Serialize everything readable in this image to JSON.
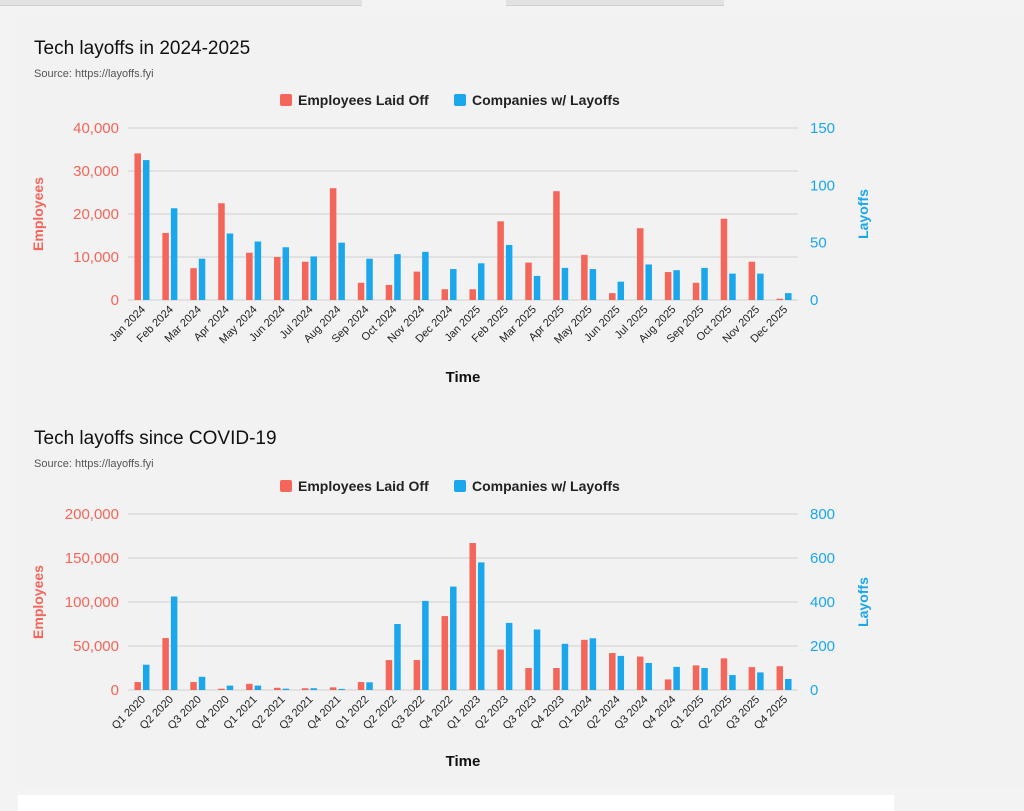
{
  "colors": {
    "employees": "#f4655a",
    "companies": "#1aa7ec",
    "grid": "#d0d0d0",
    "axis_left": "#f4655a",
    "axis_right": "#1aa7ec"
  },
  "chart_data": [
    {
      "type": "bar",
      "title": "Tech layoffs in 2024-2025",
      "subtitle": "Source: https://layoffs.fyi",
      "xlabel": "Time",
      "ylabel_left": "Employees",
      "ylabel_right": "Layoffs",
      "legend_position": "top-center",
      "grid": true,
      "ylim_left": [
        0,
        40000
      ],
      "ylim_right": [
        0,
        150
      ],
      "yticks_left": [
        "0",
        "10,000",
        "20,000",
        "30,000",
        "40,000"
      ],
      "yticks_right": [
        "0",
        "50",
        "100",
        "150"
      ],
      "categories": [
        "Jan 2024",
        "Feb 2024",
        "Mar 2024",
        "Apr 2024",
        "May 2024",
        "Jun 2024",
        "Jul 2024",
        "Aug 2024",
        "Sep 2024",
        "Oct 2024",
        "Nov 2024",
        "Dec 2024",
        "Jan 2025",
        "Feb 2025",
        "Mar 2025",
        "Apr 2025",
        "May 2025",
        "Jun 2025",
        "Jul 2025",
        "Aug 2025",
        "Sep 2025",
        "Oct 2025",
        "Nov 2025",
        "Dec 2025"
      ],
      "series": [
        {
          "name": "Employees Laid Off",
          "axis": "left",
          "values": [
            34100,
            15600,
            7400,
            22500,
            11000,
            10000,
            8900,
            26000,
            4000,
            3500,
            6600,
            2500,
            2500,
            18300,
            8700,
            25300,
            10500,
            1600,
            16700,
            6500,
            4000,
            18900,
            8900,
            300
          ]
        },
        {
          "name": "Companies w/ Layoffs",
          "axis": "right",
          "values": [
            122,
            80,
            36,
            58,
            51,
            46,
            38,
            50,
            36,
            40,
            42,
            27,
            32,
            48,
            21,
            28,
            27,
            16,
            31,
            26,
            28,
            23,
            23,
            6
          ]
        }
      ]
    },
    {
      "type": "bar",
      "title": "Tech layoffs since COVID-19",
      "subtitle": "Source: https://layoffs.fyi",
      "xlabel": "Time",
      "ylabel_left": "Employees",
      "ylabel_right": "Layoffs",
      "legend_position": "top-center",
      "grid": true,
      "ylim_left": [
        0,
        200000
      ],
      "ylim_right": [
        0,
        800
      ],
      "yticks_left": [
        "0",
        "50,000",
        "100,000",
        "150,000",
        "200,000"
      ],
      "yticks_right": [
        "0",
        "200",
        "400",
        "600",
        "800"
      ],
      "categories": [
        "Q1 2020",
        "Q2 2020",
        "Q3 2020",
        "Q4 2020",
        "Q1 2021",
        "Q2 2021",
        "Q3 2021",
        "Q4 2021",
        "Q1 2022",
        "Q2 2022",
        "Q3 2022",
        "Q4 2022",
        "Q1 2023",
        "Q2 2023",
        "Q3 2023",
        "Q4 2023",
        "Q1 2024",
        "Q2 2024",
        "Q3 2024",
        "Q4 2024",
        "Q1 2025",
        "Q2 2025",
        "Q3 2025",
        "Q4 2025"
      ],
      "series": [
        {
          "name": "Employees Laid Off",
          "axis": "left",
          "values": [
            9000,
            59000,
            9000,
            1500,
            7000,
            2500,
            2000,
            3000,
            9000,
            34000,
            34000,
            84000,
            167000,
            46000,
            25000,
            25000,
            57000,
            42000,
            38000,
            12000,
            28000,
            36000,
            26000,
            27000
          ]
        },
        {
          "name": "Companies w/ Layoffs",
          "axis": "right",
          "values": [
            115,
            425,
            60,
            20,
            20,
            6,
            8,
            5,
            35,
            300,
            405,
            470,
            580,
            305,
            275,
            210,
            235,
            155,
            123,
            105,
            100,
            68,
            80,
            50
          ]
        }
      ]
    }
  ]
}
